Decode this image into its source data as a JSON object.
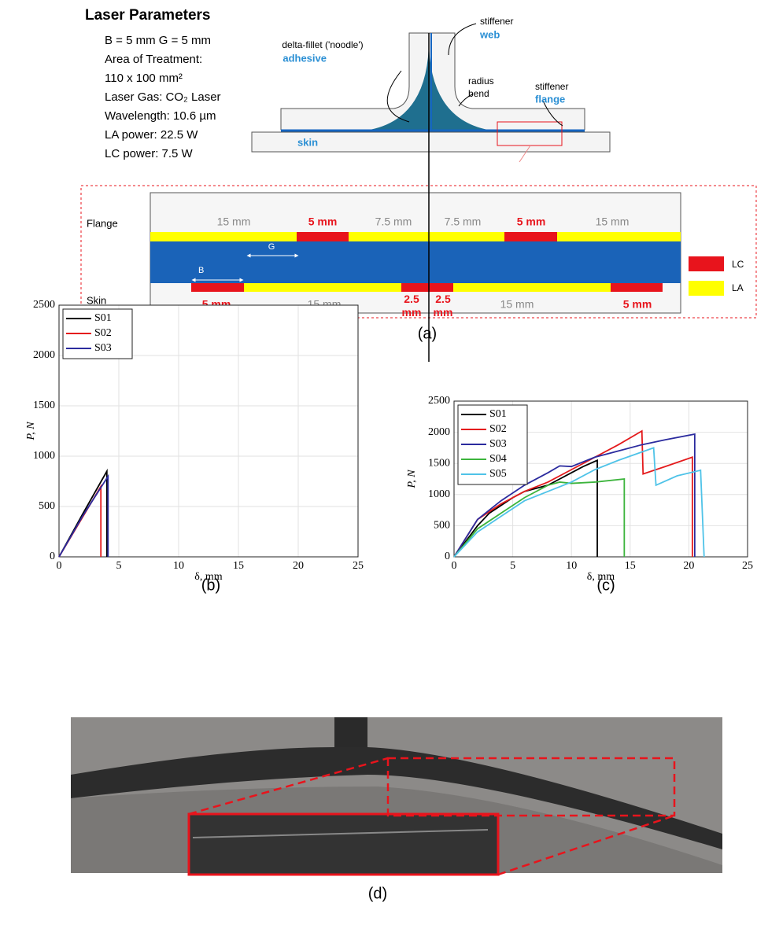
{
  "diagram": {
    "heading": "Laser Parameters",
    "parameters": [
      "B = 5 mm G = 5 mm",
      "Area of Treatment:",
      "110 x 100 mm²",
      "Laser Gas: CO₂ Laser",
      "Wavelength: 10.6 µm",
      "LA power: 22.5 W",
      "LC power: 7.5 W"
    ],
    "callouts": {
      "fillet": "delta-fillet ('noodle')",
      "adhesive": "adhesive",
      "stiffener_web": "stiffener",
      "web": "web",
      "radius": "radius",
      "bend": "bend",
      "stiffener_flange": "stiffener",
      "flange": "flange",
      "skin": "skin"
    },
    "detail": {
      "flange_label": "Flange",
      "skin_label": "Skin",
      "top_dims": [
        "15 mm",
        "5 mm",
        "7.5 mm",
        "7.5 mm",
        "5 mm",
        "15 mm"
      ],
      "bottom_dims": [
        "5 mm",
        "15 mm",
        "2.5 mm",
        "2.5 mm",
        "15 mm",
        "5 mm"
      ],
      "gap_label": "G",
      "band_label": "B"
    },
    "legend": [
      "LC",
      "LA"
    ],
    "caption": "(a)"
  },
  "chart_data": [
    {
      "type": "line",
      "caption": "(b)",
      "xlabel": "δ, mm",
      "ylabel": "P, N",
      "xlim": [
        0,
        25
      ],
      "ylim": [
        0,
        2500
      ],
      "xticks": [
        0,
        5,
        10,
        15,
        20,
        25
      ],
      "yticks": [
        0,
        500,
        1000,
        1500,
        2000,
        2500
      ],
      "grid": true,
      "legend": "upper left",
      "series": [
        {
          "name": "S01",
          "color": "#000000",
          "x": [
            0,
            2,
            4.0,
            4.0
          ],
          "values": [
            0,
            430,
            850,
            0
          ]
        },
        {
          "name": "S02",
          "color": "#e41a1c",
          "x": [
            0,
            2,
            3.5,
            3.5
          ],
          "values": [
            0,
            400,
            700,
            0
          ]
        },
        {
          "name": "S03",
          "color": "#2b2b9e",
          "x": [
            0,
            2,
            4.1,
            4.1
          ],
          "values": [
            0,
            410,
            800,
            0
          ]
        }
      ]
    },
    {
      "type": "line",
      "caption": "(c)",
      "xlabel": "δ, mm",
      "ylabel": "P, N",
      "xlim": [
        0,
        25
      ],
      "ylim": [
        0,
        2500
      ],
      "xticks": [
        0,
        5,
        10,
        15,
        20,
        25
      ],
      "yticks": [
        0,
        500,
        1000,
        1500,
        2000,
        2500
      ],
      "grid": true,
      "legend": "upper left",
      "series": [
        {
          "name": "S01",
          "color": "#000000",
          "x": [
            0,
            2,
            3,
            5,
            6,
            8,
            9,
            10,
            11,
            12.2,
            12.2
          ],
          "values": [
            0,
            500,
            700,
            950,
            1050,
            1150,
            1250,
            1350,
            1450,
            1550,
            0
          ]
        },
        {
          "name": "S02",
          "color": "#e41a1c",
          "x": [
            0,
            2,
            4,
            6,
            8,
            10,
            12,
            14,
            16,
            16.1,
            18,
            20.3,
            20.3
          ],
          "values": [
            0,
            600,
            850,
            1050,
            1200,
            1400,
            1600,
            1800,
            2020,
            1330,
            1450,
            1600,
            0
          ]
        },
        {
          "name": "S03",
          "color": "#2b2b9e",
          "x": [
            0,
            2,
            4,
            6,
            8,
            9,
            10,
            12,
            14,
            16,
            18,
            20.5,
            20.5
          ],
          "values": [
            0,
            600,
            900,
            1150,
            1350,
            1460,
            1450,
            1600,
            1700,
            1800,
            1880,
            1970,
            0
          ]
        },
        {
          "name": "S04",
          "color": "#3cb43c",
          "x": [
            0,
            2,
            4,
            6,
            8,
            9,
            10,
            12,
            14.5,
            14.5
          ],
          "values": [
            0,
            450,
            700,
            950,
            1150,
            1200,
            1180,
            1200,
            1250,
            0
          ]
        },
        {
          "name": "S05",
          "color": "#4fc3e8",
          "x": [
            0,
            2,
            4,
            6,
            8,
            10,
            12,
            14,
            17,
            17.2,
            19,
            21,
            21.3
          ],
          "values": [
            0,
            400,
            650,
            900,
            1050,
            1200,
            1400,
            1550,
            1750,
            1150,
            1300,
            1390,
            0
          ]
        }
      ]
    }
  ],
  "photo": {
    "caption": "(d)"
  }
}
